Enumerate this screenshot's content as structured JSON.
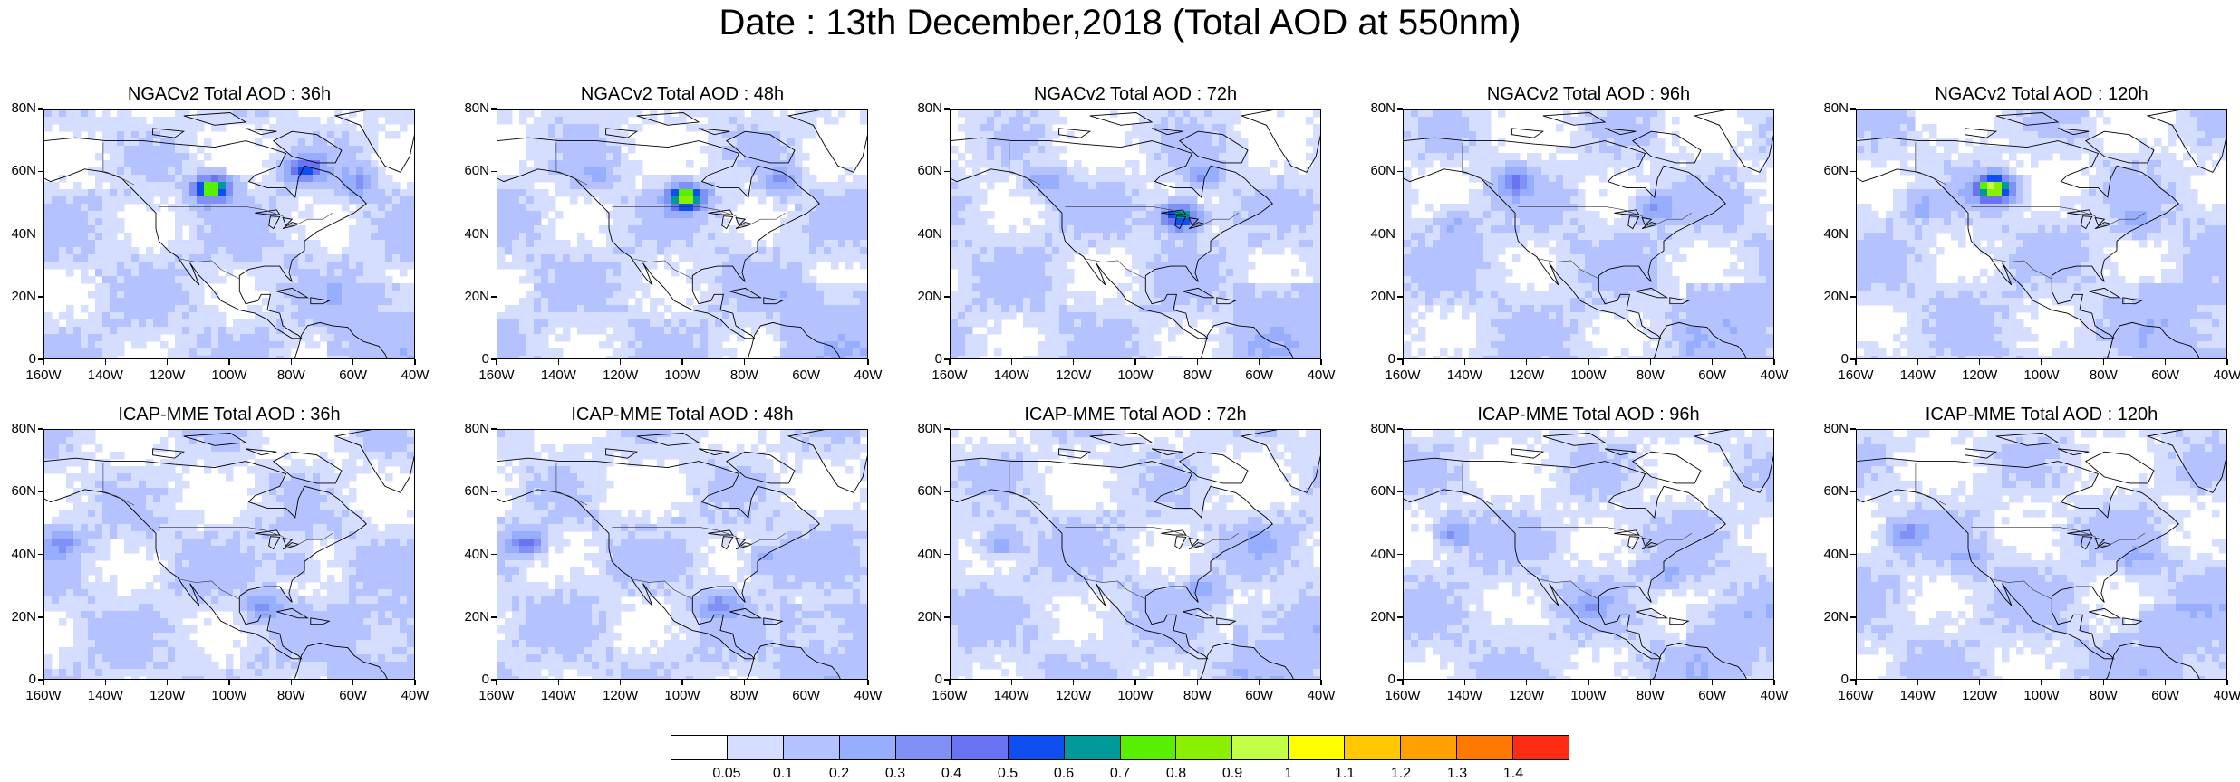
{
  "title": "Date : 13th December,2018 (Total AOD at 550nm)",
  "panels": [
    {
      "title": "NGACv2 Total AOD : 36h",
      "row": 0,
      "col": 0,
      "plumes": [
        {
          "lon": -77,
          "lat": 62,
          "aod": 0.5
        },
        {
          "lon": -107,
          "lat": 56,
          "aod": 0.8
        },
        {
          "lon": -60,
          "lat": 58,
          "aod": 0.3
        }
      ]
    },
    {
      "title": "NGACv2 Total AOD : 48h",
      "row": 0,
      "col": 1,
      "plumes": [
        {
          "lon": -100,
          "lat": 53,
          "aod": 0.8
        },
        {
          "lon": -70,
          "lat": 58,
          "aod": 0.3
        },
        {
          "lon": -130,
          "lat": 60,
          "aod": 0.2
        }
      ]
    },
    {
      "title": "NGACv2 Total AOD : 72h",
      "row": 0,
      "col": 2,
      "plumes": [
        {
          "lon": -87,
          "lat": 47,
          "aod": 0.7
        },
        {
          "lon": -130,
          "lat": 58,
          "aod": 0.3
        },
        {
          "lon": -80,
          "lat": 60,
          "aod": 0.3
        }
      ]
    },
    {
      "title": "NGACv2 Total AOD : 96h",
      "row": 0,
      "col": 3,
      "plumes": [
        {
          "lon": -125,
          "lat": 58,
          "aod": 0.4
        },
        {
          "lon": -80,
          "lat": 50,
          "aod": 0.3
        },
        {
          "lon": -145,
          "lat": 45,
          "aod": 0.2
        }
      ]
    },
    {
      "title": "NGACv2 Total AOD : 120h",
      "row": 0,
      "col": 4,
      "plumes": [
        {
          "lon": -117,
          "lat": 56,
          "aod": 0.9
        },
        {
          "lon": -140,
          "lat": 50,
          "aod": 0.2
        },
        {
          "lon": -70,
          "lat": 45,
          "aod": 0.2
        }
      ]
    },
    {
      "title": "ICAP-MME Total AOD : 36h",
      "row": 1,
      "col": 0,
      "plumes": [
        {
          "lon": -155,
          "lat": 45,
          "aod": 0.3
        },
        {
          "lon": -90,
          "lat": 25,
          "aod": 0.3
        },
        {
          "lon": -80,
          "lat": 38,
          "aod": 0.2
        }
      ]
    },
    {
      "title": "ICAP-MME Total AOD : 48h",
      "row": 1,
      "col": 1,
      "plumes": [
        {
          "lon": -152,
          "lat": 45,
          "aod": 0.4
        },
        {
          "lon": -90,
          "lat": 25,
          "aod": 0.3
        },
        {
          "lon": -75,
          "lat": 40,
          "aod": 0.2
        }
      ]
    },
    {
      "title": "ICAP-MME Total AOD : 72h",
      "row": 1,
      "col": 2,
      "plumes": [
        {
          "lon": -145,
          "lat": 45,
          "aod": 0.3
        },
        {
          "lon": -80,
          "lat": 30,
          "aod": 0.2
        },
        {
          "lon": -60,
          "lat": 45,
          "aod": 0.2
        }
      ]
    },
    {
      "title": "ICAP-MME Total AOD : 96h",
      "row": 1,
      "col": 3,
      "plumes": [
        {
          "lon": -145,
          "lat": 48,
          "aod": 0.3
        },
        {
          "lon": -75,
          "lat": 35,
          "aod": 0.2
        },
        {
          "lon": -100,
          "lat": 25,
          "aod": 0.2
        }
      ]
    },
    {
      "title": "ICAP-MME Total AOD : 120h",
      "row": 1,
      "col": 4,
      "plumes": [
        {
          "lon": -145,
          "lat": 48,
          "aod": 0.3
        },
        {
          "lon": -125,
          "lat": 40,
          "aod": 0.2
        },
        {
          "lon": -70,
          "lat": 40,
          "aod": 0.2
        }
      ]
    }
  ],
  "axes": {
    "x_ticks": [
      "160W",
      "140W",
      "120W",
      "100W",
      "80W",
      "60W",
      "40W"
    ],
    "y_ticks": [
      "0",
      "20N",
      "40N",
      "60N",
      "80N"
    ],
    "lon_range": [
      -160,
      -40
    ],
    "lat_range": [
      0,
      80
    ]
  },
  "colorbar": {
    "colors": [
      "#ffffff",
      "#d6deff",
      "#b4c3ff",
      "#97aeff",
      "#8190f7",
      "#6a73f4",
      "#0f4ef0",
      "#009a9a",
      "#56f000",
      "#8bf000",
      "#c2ff44",
      "#ffff00",
      "#ffc800",
      "#ffa000",
      "#ff7800",
      "#ff2b12"
    ],
    "labels": [
      "0.05",
      "0.1",
      "0.2",
      "0.3",
      "0.4",
      "0.5",
      "0.6",
      "0.7",
      "0.8",
      "0.9",
      "1",
      "1.1",
      "1.2",
      "1.3",
      "1.4"
    ]
  }
}
